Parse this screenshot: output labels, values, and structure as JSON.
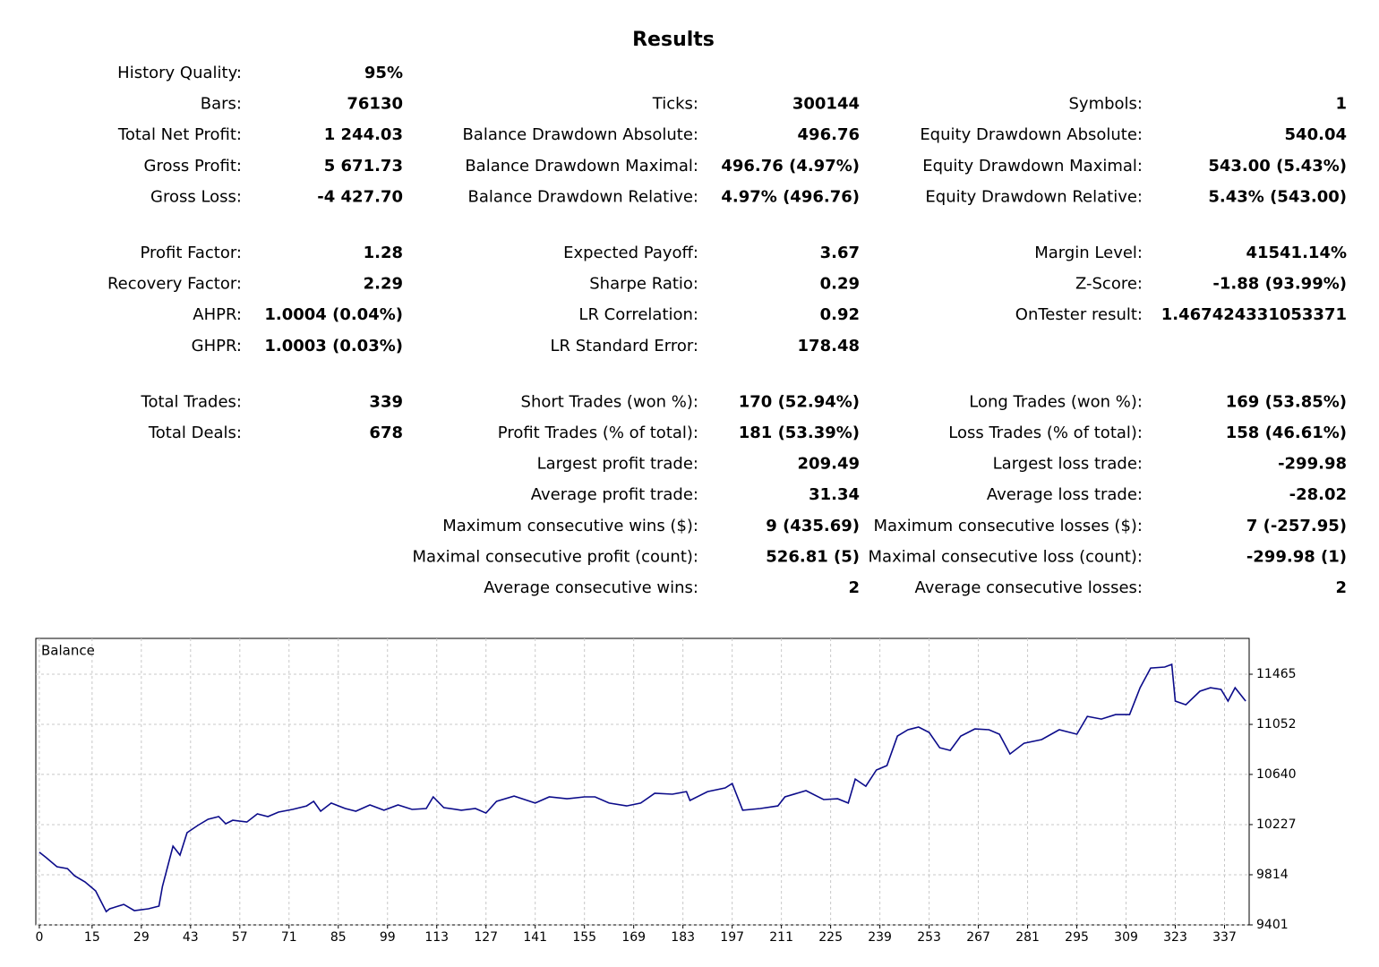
{
  "title": "Results",
  "blocks": [
    [
      [
        {
          "label": "History Quality:",
          "value": "95%"
        },
        null,
        null
      ],
      [
        {
          "label": "Bars:",
          "value": "76130"
        },
        {
          "label": "Ticks:",
          "value": "300144"
        },
        {
          "label": "Symbols:",
          "value": "1"
        }
      ],
      [
        {
          "label": "Total Net Profit:",
          "value": "1 244.03"
        },
        {
          "label": "Balance Drawdown Absolute:",
          "value": "496.76"
        },
        {
          "label": "Equity Drawdown Absolute:",
          "value": "540.04"
        }
      ],
      [
        {
          "label": "Gross Profit:",
          "value": "5 671.73"
        },
        {
          "label": "Balance Drawdown Maximal:",
          "value": "496.76 (4.97%)"
        },
        {
          "label": "Equity Drawdown Maximal:",
          "value": "543.00 (5.43%)"
        }
      ],
      [
        {
          "label": "Gross Loss:",
          "value": "-4 427.70"
        },
        {
          "label": "Balance Drawdown Relative:",
          "value": "4.97% (496.76)"
        },
        {
          "label": "Equity Drawdown Relative:",
          "value": "5.43% (543.00)"
        }
      ]
    ],
    [
      [
        {
          "label": "Profit Factor:",
          "value": "1.28"
        },
        {
          "label": "Expected Payoff:",
          "value": "3.67"
        },
        {
          "label": "Margin Level:",
          "value": "41541.14%"
        }
      ],
      [
        {
          "label": "Recovery Factor:",
          "value": "2.29"
        },
        {
          "label": "Sharpe Ratio:",
          "value": "0.29"
        },
        {
          "label": "Z-Score:",
          "value": "-1.88 (93.99%)"
        }
      ],
      [
        {
          "label": "AHPR:",
          "value": "1.0004 (0.04%)"
        },
        {
          "label": "LR Correlation:",
          "value": "0.92"
        },
        {
          "label": "OnTester result:",
          "value": "1.467424331053371"
        }
      ],
      [
        {
          "label": "GHPR:",
          "value": "1.0003 (0.03%)"
        },
        {
          "label": "LR Standard Error:",
          "value": "178.48"
        },
        null
      ]
    ],
    [
      [
        {
          "label": "Total Trades:",
          "value": "339"
        },
        {
          "label": "Short Trades (won %):",
          "value": "170 (52.94%)"
        },
        {
          "label": "Long Trades (won %):",
          "value": "169 (53.85%)"
        }
      ],
      [
        {
          "label": "Total Deals:",
          "value": "678"
        },
        {
          "label": "Profit Trades (% of total):",
          "value": "181 (53.39%)"
        },
        {
          "label": "Loss Trades (% of total):",
          "value": "158 (46.61%)"
        }
      ],
      [
        null,
        {
          "label": "Largest profit trade:",
          "value": "209.49"
        },
        {
          "label": "Largest loss trade:",
          "value": "-299.98"
        }
      ],
      [
        null,
        {
          "label": "Average profit trade:",
          "value": "31.34"
        },
        {
          "label": "Average loss trade:",
          "value": "-28.02"
        }
      ],
      [
        null,
        {
          "label": "Maximum consecutive wins ($):",
          "value": "9 (435.69)"
        },
        {
          "label": "Maximum consecutive losses ($):",
          "value": "7 (-257.95)"
        }
      ],
      [
        null,
        {
          "label": "Maximal consecutive profit (count):",
          "value": "526.81 (5)"
        },
        {
          "label": "Maximal consecutive loss (count):",
          "value": "-299.98 (1)"
        }
      ],
      [
        null,
        {
          "label": "Average consecutive wins:",
          "value": "2"
        },
        {
          "label": "Average consecutive losses:",
          "value": "2"
        }
      ]
    ]
  ],
  "chart_data": {
    "type": "line",
    "title": "Balance",
    "color": "#0b0b8a",
    "grid": true,
    "xlim": [
      -1,
      344
    ],
    "ylim": [
      9401,
      11760
    ],
    "xticks": [
      0,
      15,
      29,
      43,
      57,
      71,
      85,
      99,
      113,
      127,
      141,
      155,
      169,
      183,
      197,
      211,
      225,
      239,
      253,
      267,
      281,
      295,
      309,
      323,
      337
    ],
    "yticks": [
      9401,
      9814,
      10227,
      10640,
      11052,
      11465
    ],
    "x": [
      0,
      2,
      5,
      8,
      10,
      13,
      16,
      19,
      20,
      24,
      27,
      31,
      34,
      35,
      38,
      40,
      42,
      45,
      48,
      51,
      53,
      55,
      59,
      62,
      65,
      68,
      72,
      76,
      78,
      80,
      83,
      87,
      90,
      94,
      98,
      102,
      106,
      110,
      112,
      115,
      120,
      124,
      127,
      130,
      135,
      138,
      141,
      145,
      150,
      155,
      158,
      162,
      167,
      171,
      175,
      180,
      184,
      185,
      190,
      195,
      197,
      200,
      205,
      210,
      212,
      218,
      223,
      227,
      230,
      232,
      235,
      238,
      241,
      244,
      247,
      250,
      253,
      256,
      259,
      262,
      266,
      270,
      273,
      276,
      280,
      285,
      290,
      295,
      298,
      302,
      306,
      310,
      313,
      316,
      320,
      322,
      323,
      326,
      330,
      333,
      336,
      338,
      340,
      343
    ],
    "series": [
      {
        "name": "Balance",
        "values": [
          10000,
          9954,
          9880,
          9865,
          9806,
          9755,
          9681,
          9511,
          9534,
          9570,
          9519,
          9534,
          9556,
          9718,
          10050,
          9976,
          10160,
          10219,
          10271,
          10293,
          10234,
          10263,
          10248,
          10315,
          10293,
          10330,
          10352,
          10381,
          10418,
          10337,
          10404,
          10359,
          10337,
          10389,
          10345,
          10389,
          10352,
          10359,
          10455,
          10367,
          10345,
          10359,
          10322,
          10418,
          10462,
          10433,
          10404,
          10455,
          10440,
          10455,
          10455,
          10404,
          10381,
          10404,
          10485,
          10477,
          10499,
          10426,
          10499,
          10529,
          10565,
          10345,
          10359,
          10381,
          10455,
          10507,
          10433,
          10440,
          10404,
          10602,
          10543,
          10676,
          10713,
          10956,
          11008,
          11030,
          10986,
          10860,
          10838,
          10956,
          11015,
          11008,
          10971,
          10808,
          10897,
          10927,
          11008,
          10971,
          11118,
          11096,
          11133,
          11133,
          11354,
          11516,
          11524,
          11546,
          11244,
          11214,
          11325,
          11354,
          11340,
          11244,
          11354,
          11244
        ]
      }
    ]
  }
}
